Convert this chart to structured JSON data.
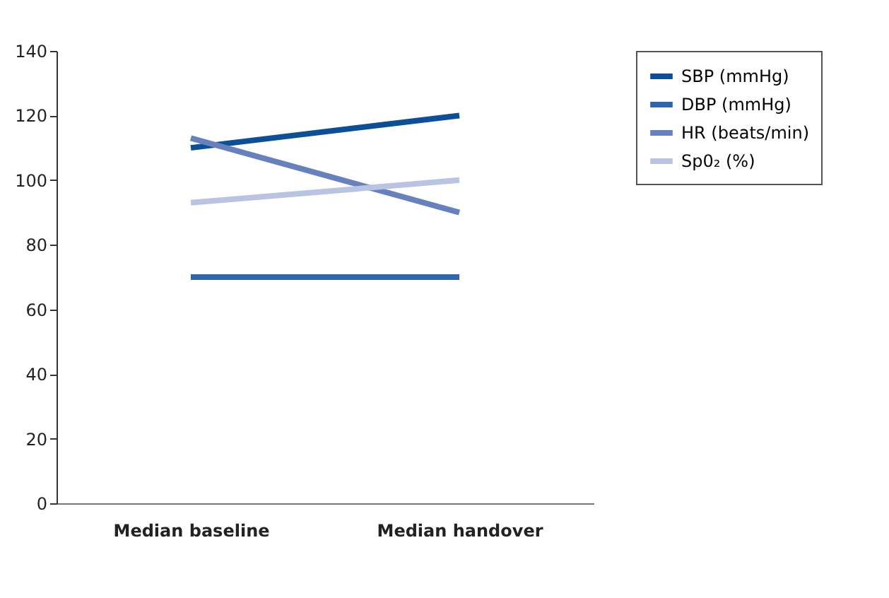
{
  "chart_data": {
    "type": "line",
    "categories": [
      "Median baseline",
      "Median handover"
    ],
    "series": [
      {
        "name": "SBP (mmHg)",
        "color": "#0b4f98",
        "values": [
          110,
          120
        ]
      },
      {
        "name": "DBP (mmHg)",
        "color": "#2f66ab",
        "values": [
          70,
          70
        ]
      },
      {
        "name": "HR (beats/min)",
        "color": "#6681bd",
        "values": [
          113,
          90
        ]
      },
      {
        "name": "Sp0₂ (%)",
        "color": "#b8c4e1",
        "values": [
          93,
          100
        ]
      }
    ],
    "ylim": [
      0,
      140
    ],
    "yticks": [
      0,
      20,
      40,
      60,
      80,
      100,
      120,
      140
    ],
    "grid": false,
    "legend": "right",
    "marker": "none",
    "line_style": "solid"
  }
}
